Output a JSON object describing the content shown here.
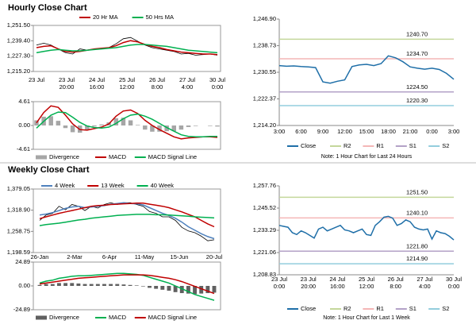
{
  "headings": [
    "Hourly Close Chart",
    "Weekly Close Chart"
  ],
  "chart_data": [
    {
      "type": "line",
      "xlabels": [
        [
          "23 Jul"
        ],
        [
          "23 Jul",
          "20:00"
        ],
        [
          "24 Jul",
          "16:00"
        ],
        [
          "25 Jul",
          "12:00"
        ],
        [
          "26 Jul",
          "8:00"
        ],
        [
          "27 Jul",
          "4:00"
        ],
        [
          "30 Jul",
          "0:00"
        ]
      ],
      "ylim": [
        1215.2,
        1251.5
      ],
      "yticks": [
        {
          "value": 1251.5,
          "label": "1,251.50"
        },
        {
          "value": 1239.4,
          "label": "1,239.40"
        },
        {
          "value": 1227.3,
          "label": "1,227.30"
        },
        {
          "value": 1215.2,
          "label": "1,215.20"
        }
      ],
      "series": [
        {
          "color": "#000000",
          "values": [
            1236,
            1237.5,
            1236,
            1233,
            1230,
            1229,
            1233,
            1232,
            1233,
            1233.5,
            1234,
            1237,
            1241,
            1242,
            1239,
            1236,
            1234,
            1233,
            1232,
            1231,
            1229,
            1229.5,
            1228,
            1228.5,
            1229,
            1228
          ]
        },
        {
          "name": "20 Hr MA",
          "color": "#c00000",
          "values": [
            1234,
            1235,
            1235.5,
            1233,
            1231,
            1230.5,
            1231,
            1232,
            1233,
            1233.5,
            1234,
            1235.5,
            1238,
            1239.5,
            1238.5,
            1236.5,
            1235,
            1234,
            1232.5,
            1231.5,
            1230.5,
            1230,
            1229.5,
            1229,
            1229,
            1228.5
          ]
        },
        {
          "name": "50 Hrs MA",
          "color": "#00b050",
          "values": [
            1230,
            1231,
            1232,
            1232.5,
            1232,
            1231.5,
            1231.5,
            1232,
            1232.5,
            1233,
            1233.5,
            1234,
            1235,
            1236,
            1236.5,
            1236.5,
            1236,
            1235.5,
            1235,
            1234,
            1233,
            1232,
            1231.5,
            1231,
            1230.5,
            1230
          ]
        }
      ]
    },
    {
      "type": "line",
      "ylim": [
        -4.61,
        4.61
      ],
      "yticks": [
        4.61,
        {
          "value": 0,
          "label": "0.00"
        },
        -4.61
      ],
      "series": [
        {
          "name": "Divergence",
          "style": "bar",
          "color": "#a6a6a6",
          "values": [
            1,
            1.7,
            1.8,
            0.9,
            -0.5,
            -1.3,
            -1.4,
            -0.8,
            -0.2,
            0.2,
            0.6,
            1.4,
            1.5,
            1,
            0.1,
            -0.8,
            -1.2,
            -1.2,
            -1.1,
            -1.1,
            -0.8,
            -0.3,
            -0.1,
            0,
            -0.1,
            -0.2
          ]
        },
        {
          "name": "MACD",
          "color": "#c00000",
          "values": [
            0.5,
            2.5,
            3.8,
            3.5,
            2,
            0.3,
            -0.8,
            -0.9,
            -0.6,
            -0.3,
            0.3,
            1.8,
            2.8,
            3,
            2.3,
            1,
            0,
            -0.8,
            -1.5,
            -2.2,
            -2.6,
            -2.4,
            -2.3,
            -2.2,
            -2.2,
            -2.3
          ]
        },
        {
          "name": "MACD Signal Line",
          "color": "#00b050",
          "values": [
            -0.5,
            0.8,
            2,
            2.6,
            2.5,
            1.6,
            0.6,
            -0.1,
            -0.4,
            -0.5,
            -0.3,
            0.4,
            1.3,
            2,
            2.2,
            1.8,
            1.2,
            0.4,
            -0.4,
            -1.1,
            -1.8,
            -2.1,
            -2.2,
            -2.2,
            -2.1,
            -2.1
          ]
        }
      ]
    },
    {
      "type": "line",
      "xlabels": [
        [
          "3:00"
        ],
        [
          "6:00"
        ],
        [
          "9:00"
        ],
        [
          "12:00"
        ],
        [
          "15:00"
        ],
        [
          "18:00"
        ],
        [
          "21:00"
        ],
        [
          "0:00"
        ],
        [
          "3:00"
        ]
      ],
      "ylim": [
        1214.2,
        1246.9
      ],
      "yticks": [
        {
          "value": 1246.9,
          "label": "1,246.90"
        },
        {
          "value": 1238.73,
          "label": "1,238.73"
        },
        {
          "value": 1230.55,
          "label": "1,230.55"
        },
        {
          "value": 1222.37,
          "label": "1,222.37"
        },
        {
          "value": 1214.2,
          "label": "1,214.20"
        }
      ],
      "series": [
        {
          "name": "Close",
          "color": "#1f6fa8",
          "values": [
            1232.6,
            1232.4,
            1232.5,
            1232.3,
            1232.2,
            1232,
            1227.6,
            1227.2,
            1227.8,
            1228.2,
            1232.3,
            1232.8,
            1233,
            1232.6,
            1233.2,
            1235.6,
            1235,
            1233.8,
            1232.2,
            1231.8,
            1231.5,
            1231.8,
            1231.4,
            1230.2,
            1228.4
          ]
        }
      ],
      "levels": [
        {
          "name": "R2",
          "value": 1240.7,
          "label": "1240.70",
          "color": "#c4d79b"
        },
        {
          "name": "R1",
          "value": 1234.7,
          "label": "1234.70",
          "color": "#f4b6b6"
        },
        {
          "name": "S1",
          "value": 1224.5,
          "label": "1224.50",
          "color": "#b3a2c7"
        },
        {
          "name": "S2",
          "value": 1220.3,
          "label": "1220.30",
          "color": "#93cddd"
        }
      ],
      "note": "Note: 1 Hour Chart for Last 24 Hours"
    },
    {
      "type": "line",
      "xlabels": [
        [
          "26-Jan"
        ],
        [
          "2-Mar"
        ],
        [
          "6-Apr"
        ],
        [
          "11-May"
        ],
        [
          "15-Jun"
        ],
        [
          "20-Jul"
        ]
      ],
      "ylim": [
        1198.59,
        1379.05
      ],
      "yticks": [
        {
          "value": 1379.05,
          "label": "1,379.05"
        },
        {
          "value": 1318.9,
          "label": "1,318.90"
        },
        {
          "value": 1258.75,
          "label": "1,258.75"
        },
        {
          "value": 1198.59,
          "label": "1,198.59"
        }
      ],
      "series": [
        {
          "color": "#000000",
          "values": [
            1290,
            1305,
            1310,
            1330,
            1320,
            1335,
            1330,
            1318,
            1330,
            1325,
            1335,
            1340,
            1335,
            1340,
            1340,
            1335,
            1330,
            1315,
            1310,
            1300,
            1300,
            1290,
            1270,
            1260,
            1255,
            1245,
            1232,
            1235
          ]
        },
        {
          "name": "4 Week",
          "color": "#4f81bd",
          "values": [
            1305,
            1308,
            1312,
            1318,
            1324,
            1328,
            1330,
            1326,
            1328,
            1330,
            1332,
            1336,
            1338,
            1340,
            1338,
            1337,
            1334,
            1326,
            1318,
            1310,
            1304,
            1296,
            1285,
            1272,
            1262,
            1252,
            1244,
            1238
          ]
        },
        {
          "name": "13 Week",
          "color": "#c00000",
          "values": [
            1295,
            1300,
            1305,
            1310,
            1314,
            1318,
            1322,
            1326,
            1330,
            1332,
            1333,
            1335,
            1336,
            1337,
            1338,
            1339,
            1339,
            1336,
            1333,
            1330,
            1326,
            1320,
            1314,
            1307,
            1300,
            1290,
            1280,
            1272
          ]
        },
        {
          "name": "40 Week",
          "color": "#00b050",
          "values": [
            1275,
            1278,
            1280,
            1282,
            1285,
            1288,
            1291,
            1293,
            1296,
            1298,
            1300,
            1302,
            1304,
            1305,
            1306,
            1307,
            1307,
            1307,
            1306,
            1306,
            1305,
            1304,
            1303,
            1302,
            1300,
            1299,
            1298,
            1297
          ]
        }
      ]
    },
    {
      "type": "line",
      "ylim": [
        -24.89,
        24.89
      ],
      "yticks": [
        24.89,
        {
          "value": 0,
          "label": "0.00"
        },
        -24.89
      ],
      "series": [
        {
          "name": "Divergence",
          "style": "bar",
          "color": "#606060",
          "values": [
            1,
            2,
            2,
            3,
            3,
            3,
            2.5,
            2,
            2,
            2,
            2,
            2,
            2,
            1.5,
            1,
            0.5,
            -0.5,
            -2,
            -3,
            -4,
            -5,
            -6.5,
            -7.5,
            -8,
            -8.5,
            -8,
            -7.5,
            -7
          ]
        },
        {
          "name": "MACD",
          "color": "#00b050",
          "values": [
            3,
            5,
            6,
            8,
            9,
            10,
            10.5,
            10.5,
            11,
            11.5,
            12,
            12.5,
            13,
            13,
            12.5,
            12,
            11,
            9,
            7,
            5,
            3,
            0,
            -3,
            -6,
            -9,
            -11,
            -13,
            -15
          ]
        },
        {
          "name": "MACD Signal Line",
          "color": "#c00000",
          "values": [
            2,
            3,
            4,
            5,
            6,
            7,
            8,
            8.5,
            9,
            9.5,
            10,
            10.5,
            11,
            11.5,
            11.5,
            11.5,
            11.5,
            11,
            10,
            9,
            8,
            6.5,
            4.5,
            2,
            -0.5,
            -3,
            -5.5,
            -8
          ]
        }
      ]
    },
    {
      "type": "line",
      "xlabels": [
        [
          "23 Jul",
          "0:00"
        ],
        [
          "23 Jul",
          "20:00"
        ],
        [
          "24 Jul",
          "16:00"
        ],
        [
          "25 Jul",
          "12:00"
        ],
        [
          "26 Jul",
          "8:00"
        ],
        [
          "27 Jul",
          "4:00"
        ],
        [
          "30 Jul",
          "0:00"
        ]
      ],
      "ylim": [
        1208.83,
        1257.76
      ],
      "yticks": [
        {
          "value": 1257.76,
          "label": "1,257.76"
        },
        {
          "value": 1245.52,
          "label": "1,245.52"
        },
        {
          "value": 1233.29,
          "label": "1,233.29"
        },
        {
          "value": 1221.06,
          "label": "1,221.06"
        },
        {
          "value": 1208.83,
          "label": "1,208.83"
        }
      ],
      "series": [
        {
          "name": "Close",
          "color": "#1f6fa8",
          "values": [
            1236,
            1235.5,
            1235,
            1232,
            1231,
            1233,
            1232,
            1230.5,
            1229,
            1234,
            1235,
            1233,
            1234,
            1235,
            1236,
            1233.5,
            1233,
            1232,
            1233,
            1234,
            1231,
            1230.5,
            1236,
            1238,
            1240.5,
            1241,
            1240,
            1236,
            1237,
            1239,
            1238,
            1235,
            1234,
            1233.5,
            1234,
            1228.5,
            1233,
            1232,
            1231.5,
            1230,
            1228
          ]
        }
      ],
      "levels": [
        {
          "name": "R2",
          "value": 1251.5,
          "label": "1251.50",
          "color": "#c4d79b"
        },
        {
          "name": "R1",
          "value": 1240.1,
          "label": "1240.10",
          "color": "#f4b6b6"
        },
        {
          "name": "S1",
          "value": 1221.8,
          "label": "1221.80",
          "color": "#b3a2c7"
        },
        {
          "name": "S2",
          "value": 1214.9,
          "label": "1214.90",
          "color": "#93cddd"
        }
      ],
      "note": "Note: 1 Hour Chart for Last 1 Week"
    }
  ]
}
